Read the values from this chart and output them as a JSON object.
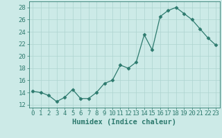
{
  "x": [
    0,
    1,
    2,
    3,
    4,
    5,
    6,
    7,
    8,
    9,
    10,
    11,
    12,
    13,
    14,
    15,
    16,
    17,
    18,
    19,
    20,
    21,
    22,
    23
  ],
  "y": [
    14.2,
    14.0,
    13.5,
    12.5,
    13.2,
    14.5,
    13.0,
    13.0,
    14.0,
    15.5,
    16.0,
    18.5,
    18.0,
    19.0,
    23.5,
    21.0,
    26.5,
    27.5,
    28.0,
    27.0,
    26.0,
    24.5,
    23.0,
    21.8
  ],
  "line_color": "#2d7a6e",
  "marker": "D",
  "marker_size": 2.5,
  "bg_color": "#cceae7",
  "grid_color": "#add4d0",
  "xlabel": "Humidex (Indice chaleur)",
  "ylabel_ticks": [
    12,
    14,
    16,
    18,
    20,
    22,
    24,
    26,
    28
  ],
  "xlim": [
    -0.5,
    23.5
  ],
  "ylim": [
    11.5,
    29.0
  ],
  "tick_label_color": "#2d7a6e",
  "xlabel_color": "#2d7a6e",
  "font_size": 6.5,
  "xlabel_font_size": 7.5
}
